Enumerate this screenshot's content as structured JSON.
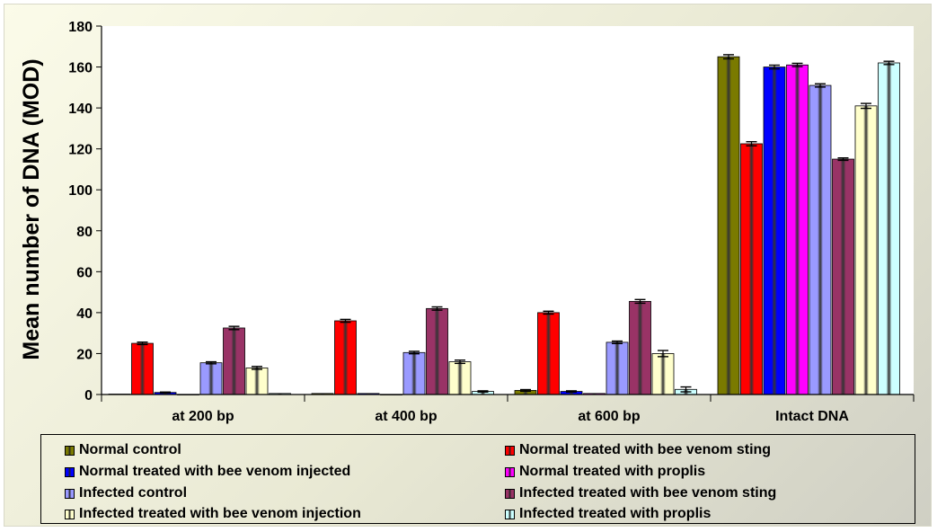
{
  "chart_data": {
    "type": "bar",
    "title": "",
    "ylabel": "Mean number of  DNA (MOD)",
    "xlabel": "",
    "ylim": [
      0,
      180
    ],
    "yticks": [
      0,
      20,
      40,
      60,
      80,
      100,
      120,
      140,
      160,
      180
    ],
    "categories": [
      "at 200 bp",
      "at 400 bp",
      "at 600 bp",
      "Intact DNA"
    ],
    "legend_position": "bottom",
    "series": [
      {
        "name": "Normal control",
        "color": "#7a7a00",
        "values": [
          0.2,
          0.5,
          2,
          165
        ],
        "errors": [
          0,
          0.3,
          0.4,
          1
        ]
      },
      {
        "name": "Normal treated with bee venom sting",
        "color": "#ff0000",
        "values": [
          25,
          36,
          40,
          122.5
        ],
        "errors": [
          0.6,
          0.7,
          0.7,
          1
        ]
      },
      {
        "name": "Normal treated with bee venom injected",
        "color": "#0000ff",
        "values": [
          1,
          0.5,
          1.5,
          160
        ],
        "errors": [
          0.2,
          0.2,
          0.3,
          0.9
        ]
      },
      {
        "name": "Normal treated with proplis",
        "color": "#ff00ff",
        "values": [
          0,
          0,
          0.5,
          161
        ],
        "errors": [
          0,
          0,
          0.2,
          0.8
        ]
      },
      {
        "name": "Infected control",
        "color": "#9a9aff",
        "values": [
          15.5,
          20.5,
          25.5,
          151
        ],
        "errors": [
          0.5,
          0.6,
          0.6,
          0.8
        ]
      },
      {
        "name": "Infected treated with bee venom sting",
        "color": "#993366",
        "values": [
          32.5,
          42,
          45.5,
          115
        ],
        "errors": [
          0.8,
          0.8,
          0.9,
          0.6
        ]
      },
      {
        "name": "Infected treated with bee venom injection",
        "color": "#ffffcc",
        "values": [
          13,
          16,
          20,
          141
        ],
        "errors": [
          0.7,
          0.8,
          1.5,
          1.2
        ]
      },
      {
        "name": "Infected treated with proplis",
        "color": "#ccffff",
        "values": [
          0.5,
          1.5,
          2.5,
          162
        ],
        "errors": [
          0.2,
          0.3,
          1.2,
          0.8
        ]
      }
    ]
  }
}
